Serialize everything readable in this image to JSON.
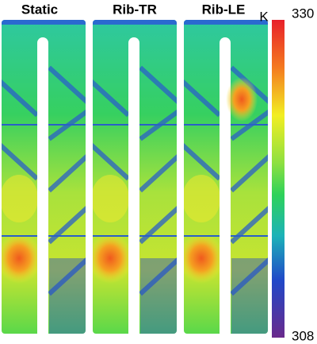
{
  "panels": [
    {
      "title": "Static"
    },
    {
      "title": "Rib-TR"
    },
    {
      "title": "Rib-LE"
    }
  ],
  "colorbar": {
    "unit": "K",
    "max": 330,
    "min": 308
  }
}
